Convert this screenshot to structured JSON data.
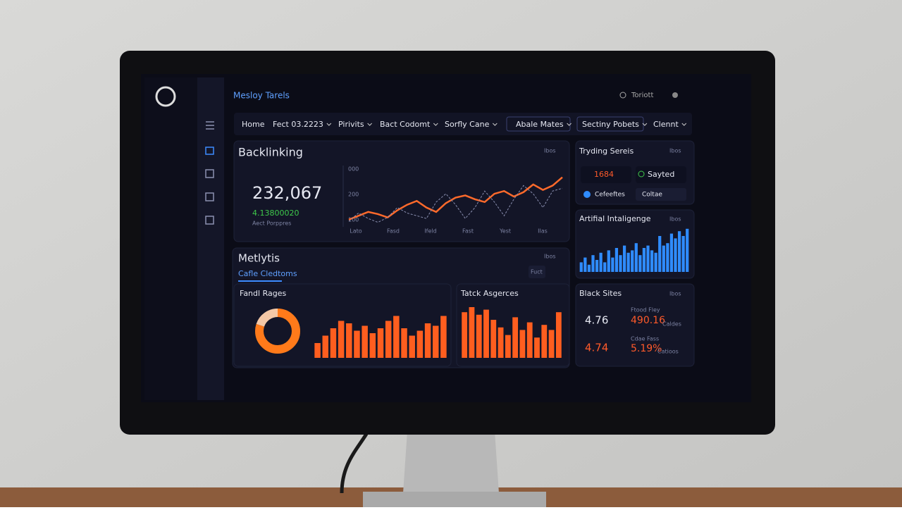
{
  "header": {
    "title": "Mesloy Tarels",
    "user": "Toriott"
  },
  "nav": {
    "items": [
      "Home",
      "Fect 03.2223",
      "Pirivits",
      "Bact Codomt",
      "Sorfly Cane",
      "Abale Mates",
      "Sectiny Pobets",
      "Clennt"
    ]
  },
  "backlinking": {
    "title": "Backlinking",
    "filter": "Ibos",
    "value": "232,067",
    "change": "4.13800020",
    "caption": "Aect Porppres",
    "chart": {
      "y_labels": [
        "000",
        "200",
        "100"
      ],
      "x_labels": [
        "Lato",
        "Fasd",
        "Ifeld",
        "Fast",
        "Yest",
        "Ilas"
      ],
      "ylim": [
        0,
        100
      ],
      "series": [
        {
          "color": "#ff6a2b",
          "values": [
            8,
            15,
            22,
            18,
            12,
            25,
            35,
            42,
            30,
            22,
            38,
            48,
            52,
            45,
            40,
            55,
            60,
            50,
            58,
            72,
            62,
            70,
            85
          ]
        },
        {
          "color": "#8a8fb0",
          "values": [
            5,
            20,
            10,
            3,
            12,
            30,
            20,
            15,
            10,
            40,
            55,
            35,
            10,
            30,
            60,
            40,
            15,
            45,
            70,
            55,
            30,
            60,
            65
          ]
        }
      ]
    }
  },
  "trading": {
    "title": "Tryding Sereis",
    "filter": "Ibos",
    "items": [
      "1684",
      "Sayted",
      "Cefeeftes",
      "Coltae"
    ]
  },
  "ai": {
    "title": "Artifial Intaligenge",
    "filter": "Ibos",
    "chart": {
      "ylim": [
        0,
        100
      ],
      "color": "#2f8cff",
      "values": [
        20,
        30,
        15,
        35,
        25,
        40,
        20,
        45,
        30,
        50,
        35,
        55,
        40,
        45,
        60,
        35,
        50,
        55,
        45,
        40,
        75,
        55,
        60,
        80,
        70,
        85,
        75,
        90
      ]
    }
  },
  "metlytis": {
    "title": "Metlytis",
    "filter": "Ibos",
    "tab": "Cafle Cledtoms",
    "button": "Fuct"
  },
  "fandl": {
    "title": "Fandl Rages",
    "donut": {
      "values": [
        80,
        20
      ],
      "colors": [
        "#ff7a1a",
        "#f4c8a6"
      ]
    },
    "bars": {
      "ylim": [
        0,
        100
      ],
      "color": "#ff5e1f",
      "values": [
        30,
        45,
        60,
        75,
        70,
        55,
        65,
        50,
        60,
        75,
        85,
        60,
        45,
        55,
        70,
        65,
        85
      ]
    }
  },
  "tatck": {
    "title": "Tatck Asgerces",
    "bars": {
      "ylim": [
        0,
        100
      ],
      "color": "#ff5e1f",
      "values": [
        90,
        100,
        85,
        95,
        75,
        60,
        45,
        80,
        55,
        70,
        40,
        65,
        55,
        90
      ]
    }
  },
  "black_sites": {
    "title": "Black Sites",
    "filter": "Ibos",
    "rows": [
      {
        "value": "4.76",
        "label": "Ftood Fley",
        "metric": "490.16",
        "unit": "Caldes"
      },
      {
        "value": "4.74",
        "label": "Cdae Fass",
        "metric": "5.19%",
        "unit": "Catioos"
      }
    ]
  }
}
